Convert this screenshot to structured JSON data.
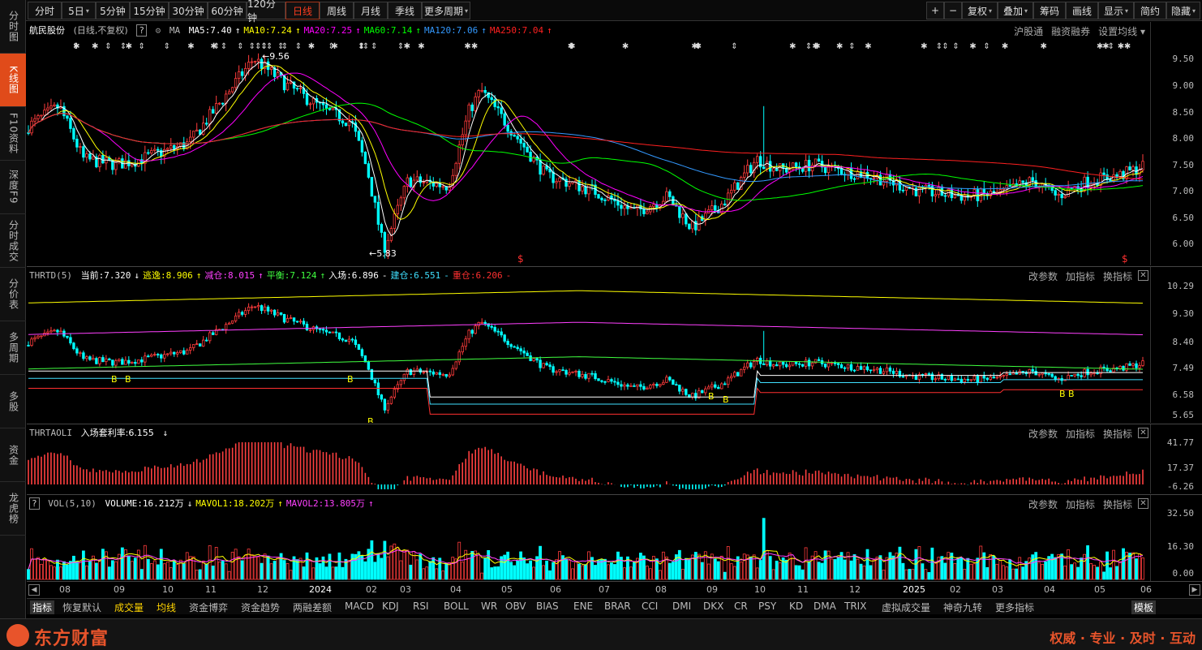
{
  "left_nav": [
    {
      "label": "分时图",
      "active": false
    },
    {
      "label": "K线图",
      "active": true
    },
    {
      "label": "F10资料",
      "active": false
    },
    {
      "label": "深度F9",
      "active": false
    },
    {
      "label": "分时成交",
      "active": false
    },
    {
      "label": "分价表",
      "active": false
    },
    {
      "label": "多周期",
      "active": false
    },
    {
      "label": "多股",
      "active": false
    },
    {
      "label": "资金",
      "active": false
    },
    {
      "label": "龙虎榜",
      "active": false
    }
  ],
  "toolbar": {
    "periods": [
      "分时",
      "5日",
      "5分钟",
      "15分钟",
      "30分钟",
      "60分钟",
      "120分钟",
      "日线",
      "周线",
      "月线",
      "季线",
      "更多周期"
    ],
    "active_period": "日线",
    "right_buttons": [
      "+",
      "−",
      "复权",
      "叠加",
      "筹码",
      "画线",
      "显示",
      "简约",
      "隐藏"
    ]
  },
  "kline": {
    "stock_name": "航民股份",
    "mode": "(日线,不复权)",
    "help": "?",
    "ma_label": "MA",
    "ma": [
      {
        "label": "MA5:7.40",
        "arrow": "↑",
        "color": "#ffffff"
      },
      {
        "label": "MA10:7.24",
        "arrow": "↑",
        "color": "#ffff00"
      },
      {
        "label": "MA20:7.25",
        "arrow": "↑",
        "color": "#ff00ff"
      },
      {
        "label": "MA60:7.14",
        "arrow": "↑",
        "color": "#00ff00"
      },
      {
        "label": "MA120:7.06",
        "arrow": "↑",
        "color": "#3399ff"
      },
      {
        "label": "MA250:7.04",
        "arrow": "↑",
        "color": "#ff2020"
      }
    ],
    "links": [
      "沪股通",
      "融资融券",
      "设置均线"
    ],
    "y_ticks": [
      "9.50",
      "9.00",
      "8.50",
      "8.00",
      "7.50",
      "7.00",
      "6.50",
      "6.00"
    ],
    "high_label": "9.56",
    "low_label": "5.83"
  },
  "thrtd": {
    "name": "THRTD(5)",
    "items": [
      {
        "label": "当前:7.320",
        "arrow": "↓",
        "color": "#ffffff"
      },
      {
        "label": "逃逸:8.906",
        "arrow": "↑",
        "color": "#ffff00"
      },
      {
        "label": "减仓:8.015",
        "arrow": "↑",
        "color": "#ff40ff"
      },
      {
        "label": "平衡:7.124",
        "arrow": "↑",
        "color": "#40ff40"
      },
      {
        "label": "入场:6.896",
        "arrow": "-",
        "color": "#ffffff"
      },
      {
        "label": "建仓:6.551",
        "arrow": "-",
        "color": "#40e0ff"
      },
      {
        "label": "重仓:6.206",
        "arrow": "-",
        "color": "#ff3030"
      }
    ],
    "y_ticks": [
      "10.29",
      "9.30",
      "8.40",
      "7.49",
      "6.58",
      "5.65"
    ]
  },
  "thrtaoli": {
    "name": "THRTAOLI",
    "label": "入场套利率:6.155",
    "arrow": "↓",
    "y_ticks": [
      "41.77",
      "17.37",
      "-6.26"
    ]
  },
  "vol": {
    "name": "VOL(5,10)",
    "help": "?",
    "items": [
      {
        "label": "VOLUME:16.212万",
        "arrow": "↓",
        "color": "#ffffff"
      },
      {
        "label": "MAVOL1:18.202万",
        "arrow": "↑",
        "color": "#ffff00"
      },
      {
        "label": "MAVOL2:13.805万",
        "arrow": "↑",
        "color": "#ff40ff"
      }
    ],
    "y_ticks": [
      "32.50",
      "16.30",
      "0.00"
    ]
  },
  "pane_actions": [
    "改参数",
    "加指标",
    "换指标"
  ],
  "time_axis": [
    "08",
    "09",
    "10",
    "11",
    "12",
    "2024",
    "02",
    "03",
    "04",
    "05",
    "06",
    "07",
    "08",
    "09",
    "10",
    "11",
    "12",
    "2025",
    "02",
    "03",
    "04",
    "05",
    "06"
  ],
  "indicators": [
    "指标",
    "恢复默认",
    "成交量",
    "均线",
    "资金博弈",
    "资金趋势",
    "两融差额",
    "MACD",
    "KDJ",
    "RSI",
    "BOLL",
    "WR",
    "OBV",
    "BIAS",
    "ENE",
    "BRAR",
    "CCI",
    "DMI",
    "DKX",
    "CR",
    "PSY",
    "KD",
    "DMA",
    "TRIX",
    "虚拟成交量",
    "神奇九转",
    "更多指标",
    "模板"
  ],
  "footer": {
    "brand": "东方财富",
    "slogan": "权威 · 专业 · 及时 · 互动"
  },
  "colors": {
    "up": "#ff3c3c",
    "down": "#00ffff",
    "accent": "#e8542b"
  }
}
